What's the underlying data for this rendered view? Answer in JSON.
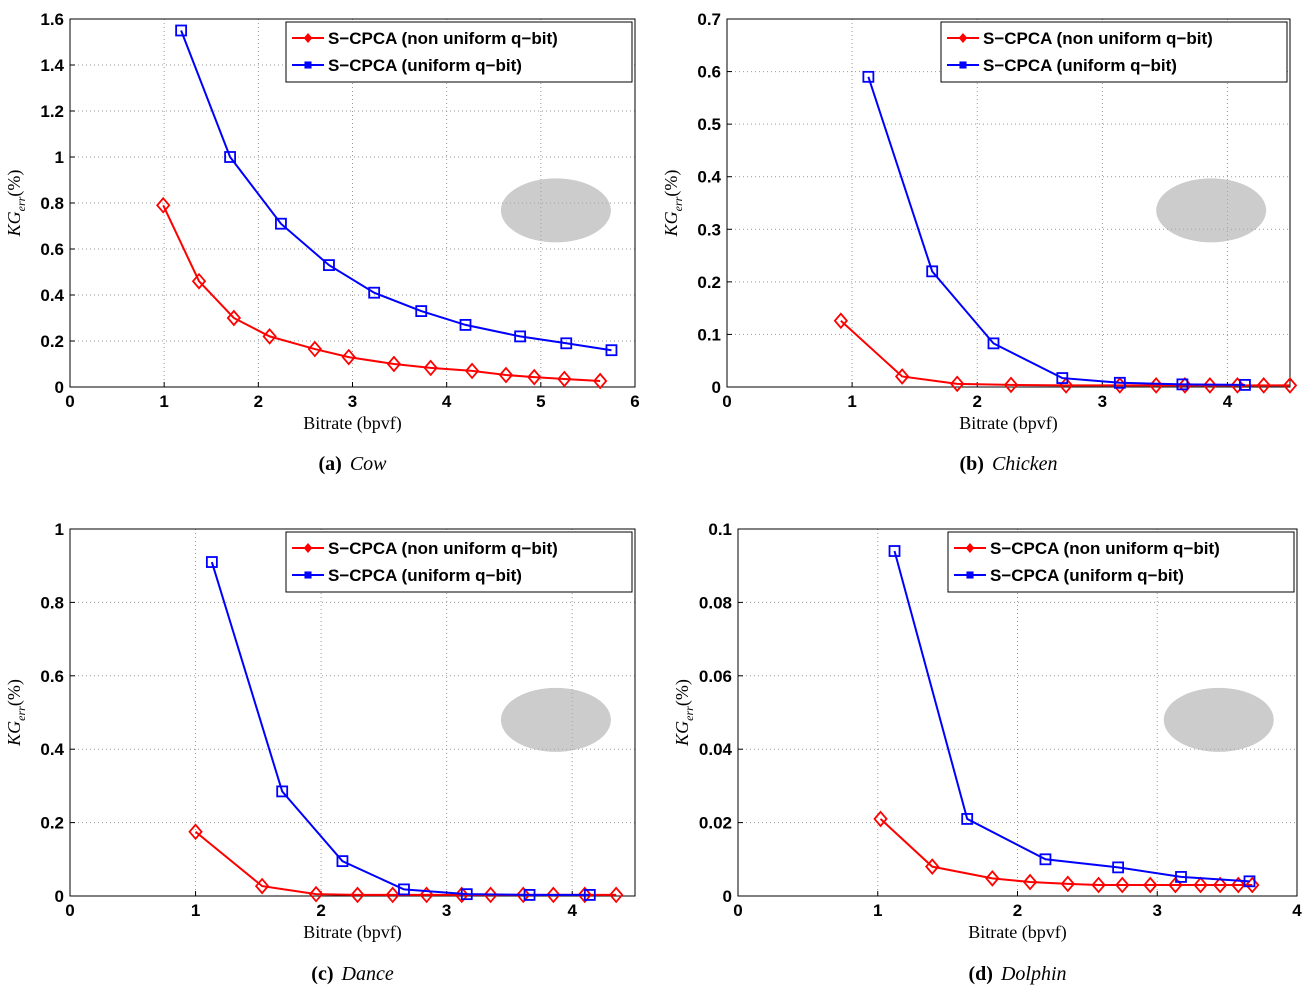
{
  "chart_data": [
    {
      "type": "line",
      "caption_label": "(a)",
      "caption": "Cow",
      "xlabel": "Bitrate (bpvf)",
      "ylabel": [
        "KG",
        "err",
        "(%)"
      ],
      "xlim": [
        0,
        6
      ],
      "xticks": [
        0,
        1,
        2,
        3,
        4,
        5,
        6
      ],
      "ylim": [
        0,
        1.6
      ],
      "yticks": [
        0,
        0.2,
        0.4,
        0.6,
        0.8,
        1,
        1.2,
        1.4,
        1.6
      ],
      "grid": true,
      "legend": "top-right",
      "series": [
        {
          "name": "S−CPCA (non uniform q−bit)",
          "color": "#ff0000",
          "marker": "diamond",
          "x": [
            0.99,
            1.37,
            1.74,
            2.12,
            2.6,
            2.96,
            3.44,
            3.83,
            4.27,
            4.63,
            4.93,
            5.25,
            5.63
          ],
          "values": [
            0.79,
            0.46,
            0.3,
            0.22,
            0.165,
            0.13,
            0.1,
            0.083,
            0.07,
            0.052,
            0.043,
            0.035,
            0.026
          ]
        },
        {
          "name": "S−CPCA (uniform q−bit)",
          "color": "#0000ff",
          "marker": "square",
          "x": [
            1.18,
            1.7,
            2.24,
            2.75,
            3.23,
            3.73,
            4.2,
            4.78,
            5.27,
            5.75
          ],
          "values": [
            1.55,
            1.0,
            0.71,
            0.53,
            0.41,
            0.33,
            0.27,
            0.22,
            0.19,
            0.16
          ]
        }
      ]
    },
    {
      "type": "line",
      "caption_label": "(b)",
      "caption": "Chicken",
      "xlabel": "Bitrate (bpvf)",
      "ylabel": [
        "KG",
        "err",
        "(%)"
      ],
      "xlim": [
        0,
        4.5
      ],
      "xticks": [
        0,
        1,
        2,
        3,
        4
      ],
      "ylim": [
        0,
        0.7
      ],
      "yticks": [
        0,
        0.1,
        0.2,
        0.3,
        0.4,
        0.5,
        0.6,
        0.7
      ],
      "grid": true,
      "legend": "top-right",
      "series": [
        {
          "name": "S−CPCA (non uniform q−bit)",
          "color": "#ff0000",
          "marker": "diamond",
          "x": [
            0.91,
            1.4,
            1.84,
            2.27,
            2.71,
            3.14,
            3.43,
            3.66,
            3.86,
            4.08,
            4.29,
            4.5
          ],
          "values": [
            0.126,
            0.02,
            0.006,
            0.004,
            0.003,
            0.003,
            0.003,
            0.003,
            0.003,
            0.003,
            0.003,
            0.003
          ]
        },
        {
          "name": "S−CPCA (uniform q−bit)",
          "color": "#0000ff",
          "marker": "square",
          "x": [
            1.13,
            1.64,
            2.13,
            2.68,
            3.14,
            3.64,
            4.14
          ],
          "values": [
            0.59,
            0.22,
            0.083,
            0.017,
            0.008,
            0.005,
            0.004
          ]
        }
      ]
    },
    {
      "type": "line",
      "caption_label": "(c)",
      "caption": "Dance",
      "xlabel": "Bitrate (bpvf)",
      "ylabel": [
        "KG",
        "err",
        "(%)"
      ],
      "xlim": [
        0,
        4.5
      ],
      "xticks": [
        0,
        1,
        2,
        3,
        4
      ],
      "ylim": [
        0,
        1
      ],
      "yticks": [
        0,
        0.2,
        0.4,
        0.6,
        0.8,
        1
      ],
      "grid": true,
      "legend": "top-right",
      "series": [
        {
          "name": "S−CPCA (non uniform q−bit)",
          "color": "#ff0000",
          "marker": "diamond",
          "x": [
            1.0,
            1.53,
            1.96,
            2.29,
            2.57,
            2.84,
            3.12,
            3.35,
            3.61,
            3.85,
            4.1,
            4.35
          ],
          "values": [
            0.175,
            0.027,
            0.005,
            0.003,
            0.003,
            0.003,
            0.003,
            0.003,
            0.003,
            0.003,
            0.003,
            0.003
          ]
        },
        {
          "name": "S−CPCA (uniform q−bit)",
          "color": "#0000ff",
          "marker": "square",
          "x": [
            1.13,
            1.69,
            2.17,
            2.66,
            3.16,
            3.66,
            4.14
          ],
          "values": [
            0.91,
            0.285,
            0.095,
            0.018,
            0.005,
            0.003,
            0.003
          ]
        }
      ]
    },
    {
      "type": "line",
      "caption_label": "(d)",
      "caption": "Dolphin",
      "xlabel": "Bitrate (bpvf)",
      "ylabel": [
        "KG",
        "err",
        "(%)"
      ],
      "xlim": [
        0,
        4
      ],
      "xticks": [
        0,
        1,
        2,
        3,
        4
      ],
      "ylim": [
        0,
        0.1
      ],
      "yticks": [
        0,
        0.02,
        0.04,
        0.06,
        0.08,
        0.1
      ],
      "grid": true,
      "legend": "top-right",
      "series": [
        {
          "name": "S−CPCA (non uniform q−bit)",
          "color": "#ff0000",
          "marker": "diamond",
          "x": [
            1.02,
            1.39,
            1.82,
            2.09,
            2.36,
            2.58,
            2.75,
            2.95,
            3.13,
            3.31,
            3.45,
            3.58,
            3.68
          ],
          "values": [
            0.021,
            0.008,
            0.0048,
            0.0038,
            0.0033,
            0.003,
            0.003,
            0.003,
            0.003,
            0.003,
            0.003,
            0.003,
            0.003
          ]
        },
        {
          "name": "S−CPCA (uniform q−bit)",
          "color": "#0000ff",
          "marker": "square",
          "x": [
            1.12,
            1.64,
            2.2,
            2.72,
            3.17,
            3.66
          ],
          "values": [
            0.094,
            0.021,
            0.01,
            0.0078,
            0.0052,
            0.004
          ]
        }
      ]
    }
  ]
}
